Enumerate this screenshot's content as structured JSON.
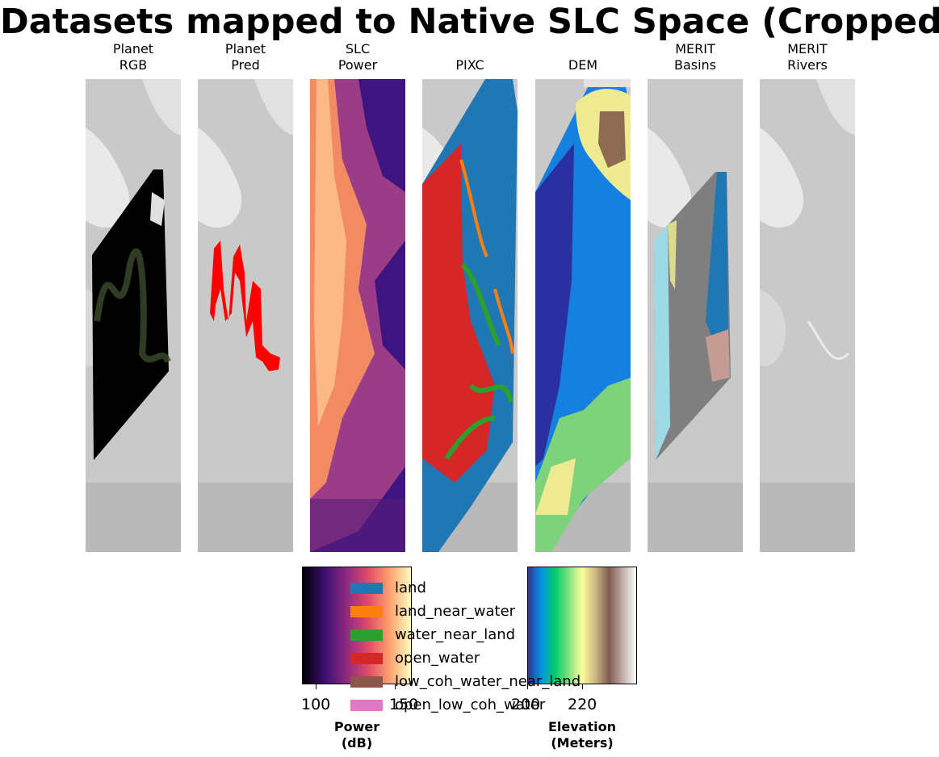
{
  "figure_title": "Datasets mapped to Native SLC Space (Cropped)",
  "panels": [
    {
      "id": "planet-rgb",
      "title_line1": "Planet",
      "title_line2": "RGB"
    },
    {
      "id": "planet-pred",
      "title_line1": "Planet",
      "title_line2": "Pred"
    },
    {
      "id": "slc-power",
      "title_line1": "SLC",
      "title_line2": "Power"
    },
    {
      "id": "pixc",
      "title_line1": "",
      "title_line2": "PIXC"
    },
    {
      "id": "dem",
      "title_line1": "",
      "title_line2": "DEM"
    },
    {
      "id": "merit-basins",
      "title_line1": "MERIT",
      "title_line2": "Basins"
    },
    {
      "id": "merit-rivers",
      "title_line1": "MERIT",
      "title_line2": "Rivers"
    }
  ],
  "colorbars": {
    "power": {
      "label_line1": "Power",
      "label_line2": "(dB)",
      "ticks": [
        "100",
        "150"
      ],
      "colormap": "magma"
    },
    "elevation": {
      "label_line1": "Elevation",
      "label_line2": "(Meters)",
      "ticks": [
        "200",
        "220"
      ],
      "colormap": "terrain"
    }
  },
  "legend": [
    {
      "label": "land",
      "color": "#1f77b4"
    },
    {
      "label": "land_near_water",
      "color": "#ff7f0e"
    },
    {
      "label": "water_near_land",
      "color": "#2ca02c"
    },
    {
      "label": "open_water",
      "color": "#d62728"
    },
    {
      "label": "low_coh_water_near_land",
      "color": "#8c564b"
    },
    {
      "label": "open_low_coh_water",
      "color": "#e377c2"
    }
  ],
  "chart_data": {
    "type": "heatmap",
    "title": "Datasets mapped to Native SLC Space (Cropped)",
    "subplots": [
      "Planet RGB",
      "Planet Pred",
      "SLC Power",
      "PIXC",
      "DEM",
      "MERIT Basins",
      "MERIT Rivers"
    ],
    "colorbars": [
      {
        "label": "Power (dB)",
        "ticks": [
          100,
          150
        ],
        "colormap": "magma"
      },
      {
        "label": "Elevation (Meters)",
        "ticks": [
          200,
          220
        ],
        "colormap": "terrain"
      }
    ],
    "categories": [
      "land",
      "land_near_water",
      "water_near_land",
      "open_water",
      "low_coh_water_near_land",
      "open_low_coh_water"
    ],
    "grid": false,
    "legend_position": "bottom-center"
  }
}
